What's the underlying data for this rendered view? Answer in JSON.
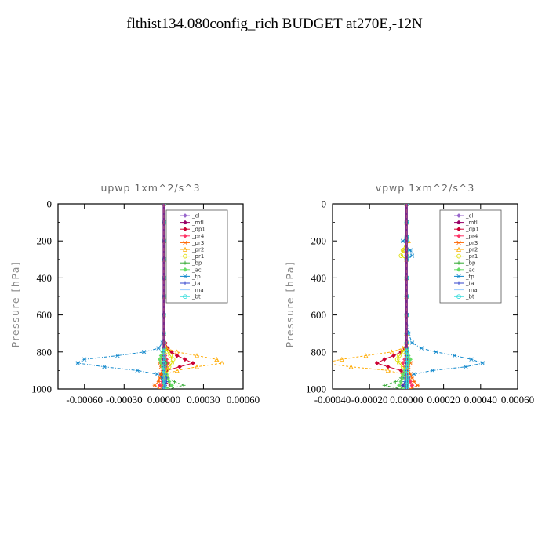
{
  "title": "flthist134.080config_rich  BUDGET at270E,-12N",
  "chart_data": [
    {
      "type": "line",
      "title": "upwp   1xm^2/s^3",
      "xlabel": "",
      "ylabel": "Pressure [hPa]",
      "xlim": [
        -0.0008,
        0.0006
      ],
      "ylim": [
        1000,
        0
      ],
      "xticks": [
        "-0.00060",
        "-0.00030",
        "0.00000",
        "0.00030",
        "0.00060"
      ],
      "xtick_values": [
        -0.0006,
        -0.0003,
        0,
        0.0003,
        0.0006
      ],
      "yticks": [
        0,
        200,
        400,
        600,
        800,
        1000
      ],
      "legend_position": "upper-right",
      "grid": false,
      "pressure": [
        0,
        100,
        200,
        300,
        400,
        500,
        600,
        700,
        750,
        780,
        800,
        820,
        840,
        860,
        880,
        900,
        920,
        940,
        960,
        980,
        1000
      ],
      "series": [
        {
          "name": "_cl",
          "color": "#9966cc",
          "values": [
            0,
            0,
            0,
            0,
            0,
            0,
            0,
            0,
            0,
            0,
            0,
            0,
            0,
            0,
            0,
            0,
            0,
            0,
            0,
            0,
            0
          ]
        },
        {
          "name": "_mfl",
          "color": "#990066",
          "values": [
            0,
            0,
            0,
            0,
            0,
            0,
            0,
            0,
            0,
            0,
            0,
            0,
            0,
            0,
            0,
            0,
            0,
            0,
            0,
            0,
            0
          ]
        },
        {
          "name": "_dp1",
          "color": "#cc0033",
          "values": [
            0,
            0,
            0,
            0,
            0,
            0,
            0,
            0,
            1e-05,
            3e-05,
            6e-05,
            0.0001,
            0.00016,
            0.00022,
            0.00012,
            2e-05,
            -2e-05,
            -1e-05,
            1e-05,
            5e-05,
            2e-05
          ]
        },
        {
          "name": "_pr4",
          "color": "#ff3366",
          "values": [
            0,
            0,
            0,
            0,
            0,
            0,
            0,
            0,
            0,
            0,
            0,
            1e-05,
            2e-05,
            3e-05,
            2e-05,
            1e-05,
            0,
            0,
            -1e-05,
            -3e-05,
            1e-05
          ]
        },
        {
          "name": "_pr3",
          "color": "#ff6600",
          "values": [
            0,
            0,
            0,
            0,
            0,
            0,
            0,
            0,
            0,
            0,
            0,
            -1e-05,
            -2e-05,
            -3e-05,
            -2e-05,
            -1e-05,
            -2e-05,
            -3e-05,
            -4e-05,
            -7e-05,
            -3e-05
          ]
        },
        {
          "name": "_pr2",
          "color": "#ffaa00",
          "values": [
            0,
            0,
            0,
            0,
            0,
            0,
            0,
            0,
            0,
            2e-05,
            0.0001,
            0.00025,
            0.0004,
            0.00044,
            0.00025,
            0.0001,
            2e-05,
            0,
            0,
            0,
            0
          ]
        },
        {
          "name": "_pr1",
          "color": "#dddd00",
          "values": [
            0,
            0,
            0,
            0,
            0,
            0,
            0,
            0,
            0,
            1e-05,
            3e-05,
            5e-05,
            7e-05,
            6e-05,
            4e-05,
            2e-05,
            1e-05,
            0,
            0,
            0,
            0
          ]
        },
        {
          "name": "_bp",
          "color": "#33aa33",
          "values": [
            0,
            0,
            0,
            0,
            0,
            0,
            0,
            0,
            0,
            0,
            0,
            0,
            1e-05,
            2e-05,
            1e-05,
            0,
            0,
            3e-05,
            8e-05,
            0.00015,
            4e-05
          ]
        },
        {
          "name": "_ac",
          "color": "#66dd66",
          "values": [
            0,
            0,
            0,
            0,
            0,
            0,
            0,
            0,
            0,
            0,
            -1e-05,
            -2e-05,
            -3e-05,
            -2e-05,
            -1e-05,
            0,
            2e-05,
            3e-05,
            4e-05,
            6e-05,
            2e-05
          ]
        },
        {
          "name": "_tp",
          "color": "#1188cc",
          "values": [
            0,
            0,
            0,
            0,
            0,
            0,
            0,
            0,
            -1e-05,
            -4e-05,
            -0.00015,
            -0.00035,
            -0.0006,
            -0.00065,
            -0.00045,
            -0.0002,
            -5e-05,
            -1e-05,
            0,
            1e-05,
            0
          ]
        },
        {
          "name": "_ta",
          "color": "#3344cc",
          "values": [
            0,
            0,
            0,
            0,
            0,
            0,
            0,
            0,
            0,
            0,
            0,
            0,
            0,
            0,
            0,
            0,
            1e-05,
            2e-05,
            2e-05,
            1e-05,
            0
          ]
        },
        {
          "name": "_ma",
          "color": "#99ccff",
          "values": [
            0,
            0,
            0,
            0,
            0,
            0,
            0,
            0,
            0,
            0,
            0,
            0,
            0,
            0,
            0,
            0,
            0,
            0,
            0,
            0,
            0
          ]
        },
        {
          "name": "_bt",
          "color": "#33dddd",
          "values": [
            0,
            0,
            0,
            0,
            0,
            0,
            0,
            0,
            0,
            0,
            0,
            0,
            0,
            0,
            0,
            0,
            0,
            0,
            0,
            0,
            0
          ]
        }
      ]
    },
    {
      "type": "line",
      "title": "vpwp   1xm^2/s^3",
      "xlabel": "",
      "ylabel": "Pressure [hPa]",
      "xlim": [
        -0.0004,
        0.0006
      ],
      "ylim": [
        1000,
        0
      ],
      "xticks": [
        "-0.00040",
        "-0.00020",
        "0.00000",
        "0.00020",
        "0.00040",
        "0.00060"
      ],
      "xtick_values": [
        -0.0004,
        -0.0002,
        0,
        0.0002,
        0.0004,
        0.0006
      ],
      "yticks": [
        0,
        200,
        400,
        600,
        800,
        1000
      ],
      "legend_position": "upper-right",
      "grid": false,
      "pressure": [
        0,
        100,
        180,
        200,
        250,
        280,
        300,
        400,
        500,
        600,
        700,
        750,
        780,
        800,
        820,
        840,
        860,
        880,
        900,
        920,
        940,
        960,
        980,
        1000
      ],
      "series": [
        {
          "name": "_cl",
          "color": "#9966cc",
          "values": [
            0,
            0,
            0,
            0,
            0,
            0,
            0,
            0,
            0,
            0,
            0,
            0,
            0,
            0,
            0,
            0,
            0,
            0,
            0,
            0,
            0,
            0,
            0,
            0
          ]
        },
        {
          "name": "_mfl",
          "color": "#990066",
          "values": [
            0,
            0,
            0,
            0,
            0,
            0,
            0,
            0,
            0,
            0,
            0,
            0,
            0,
            0,
            0,
            0,
            0,
            0,
            0,
            0,
            0,
            0,
            0,
            0
          ]
        },
        {
          "name": "_dp1",
          "color": "#cc0033",
          "values": [
            0,
            0,
            0,
            0,
            0,
            0,
            0,
            0,
            0,
            0,
            0,
            0,
            -1e-05,
            -3e-05,
            -7e-05,
            -0.00012,
            -0.00016,
            -0.0001,
            -3e-05,
            0,
            1e-05,
            0,
            -2e-05,
            0
          ]
        },
        {
          "name": "_pr4",
          "color": "#ff3366",
          "values": [
            0,
            0,
            0,
            0,
            0,
            0,
            0,
            0,
            0,
            0,
            0,
            0,
            0,
            0,
            0,
            -1e-05,
            -2e-05,
            -1e-05,
            0,
            0,
            1e-05,
            2e-05,
            3e-05,
            1e-05
          ]
        },
        {
          "name": "_pr3",
          "color": "#ff6600",
          "values": [
            0,
            0,
            0,
            0,
            0,
            0,
            0,
            0,
            0,
            0,
            0,
            0,
            0,
            0,
            0,
            1e-05,
            2e-05,
            1e-05,
            1e-05,
            2e-05,
            3e-05,
            4e-05,
            6e-05,
            2e-05
          ]
        },
        {
          "name": "_pr2",
          "color": "#ffaa00",
          "values": [
            0,
            0,
            0,
            1e-05,
            -1e-05,
            0,
            0,
            0,
            0,
            0,
            0,
            0,
            -2e-05,
            -8e-05,
            -0.00022,
            -0.00035,
            -0.00045,
            -0.0003,
            -0.0001,
            -2e-05,
            0,
            0,
            0,
            0
          ]
        },
        {
          "name": "_pr1",
          "color": "#dddd00",
          "values": [
            0,
            0,
            0,
            0,
            -2e-05,
            -3e-05,
            0,
            0,
            0,
            0,
            0,
            0,
            0,
            -2e-05,
            -4e-05,
            -5e-05,
            -4e-05,
            -2e-05,
            0,
            0,
            0,
            0,
            0,
            0
          ]
        },
        {
          "name": "_bp",
          "color": "#33aa33",
          "values": [
            0,
            0,
            0,
            0,
            0,
            0,
            0,
            0,
            0,
            0,
            0,
            0,
            0,
            0,
            0,
            1e-05,
            0,
            0,
            0,
            0,
            -3e-05,
            -6e-05,
            -0.00012,
            -3e-05
          ]
        },
        {
          "name": "_ac",
          "color": "#66dd66",
          "values": [
            0,
            0,
            0,
            0,
            0,
            0,
            0,
            0,
            0,
            0,
            0,
            0,
            0,
            0,
            1e-05,
            2e-05,
            1e-05,
            0,
            -1e-05,
            -2e-05,
            -2e-05,
            -3e-05,
            -4e-05,
            -1e-05
          ]
        },
        {
          "name": "_tp",
          "color": "#1188cc",
          "values": [
            0,
            0,
            0,
            -2e-05,
            2e-05,
            3e-05,
            0,
            0,
            0,
            0,
            1e-05,
            3e-05,
            8e-05,
            0.00016,
            0.00026,
            0.00035,
            0.00041,
            0.00032,
            0.00014,
            4e-05,
            1e-05,
            0,
            0,
            0
          ]
        },
        {
          "name": "_ta",
          "color": "#3344cc",
          "values": [
            0,
            0,
            0,
            0,
            0,
            0,
            0,
            0,
            0,
            0,
            0,
            0,
            0,
            0,
            0,
            0,
            0,
            0,
            0,
            0,
            -1e-05,
            -1e-05,
            -2e-05,
            0
          ]
        },
        {
          "name": "_ma",
          "color": "#99ccff",
          "values": [
            0,
            0,
            0,
            0,
            0,
            0,
            0,
            0,
            0,
            0,
            0,
            0,
            0,
            0,
            0,
            0,
            0,
            0,
            0,
            0,
            0,
            0,
            0,
            0
          ]
        },
        {
          "name": "_bt",
          "color": "#33dddd",
          "values": [
            0,
            0,
            0,
            0,
            0,
            0,
            0,
            0,
            0,
            0,
            0,
            0,
            0,
            0,
            0,
            0,
            0,
            0,
            0,
            0,
            0,
            0,
            0,
            0
          ]
        }
      ]
    }
  ]
}
